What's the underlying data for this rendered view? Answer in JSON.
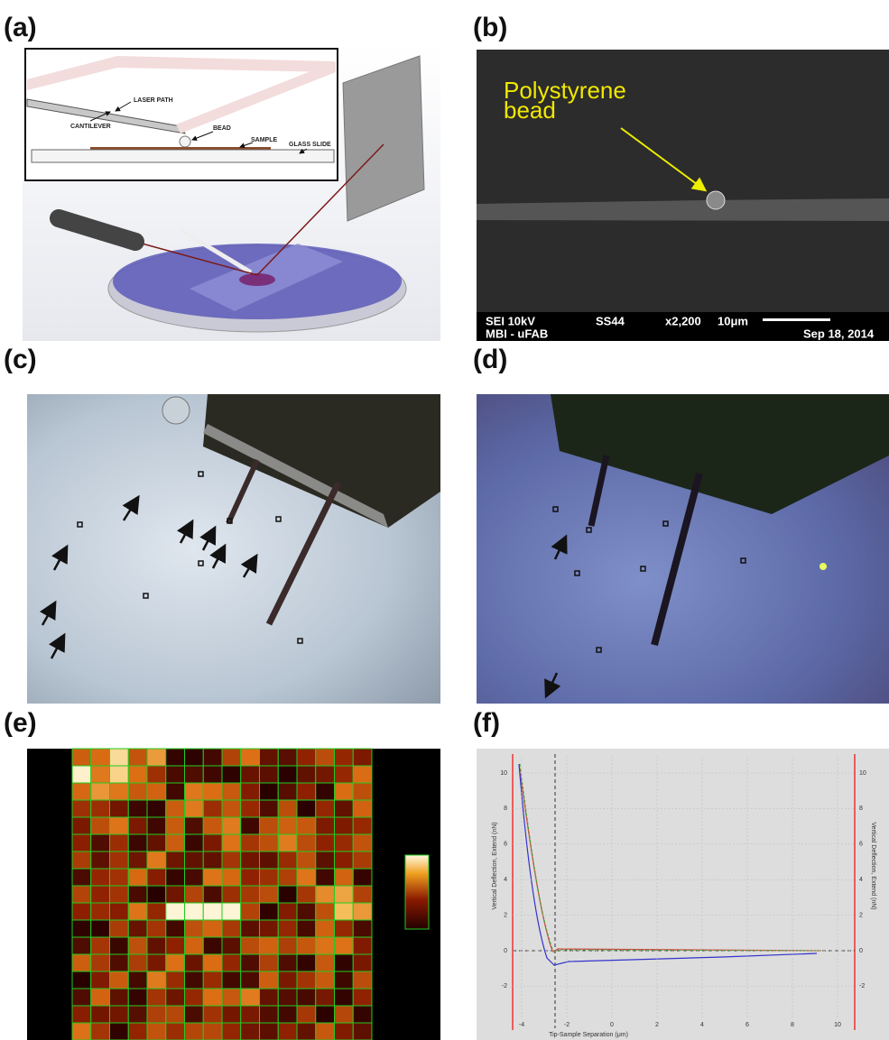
{
  "panels": [
    {
      "label": "(a)",
      "annotations": [
        "LASER PATH",
        "CANTILEVER",
        "BEAD",
        "SAMPLE",
        "GLASS SLIDE"
      ]
    },
    {
      "label": "(b)",
      "annotation_lines": [
        "Polystyrene",
        "bead"
      ],
      "info_bar": [
        "SEI 10kV",
        "MBI - uFAB",
        "SS44",
        "x2,200",
        "10μm",
        "Sep 18, 2014"
      ]
    },
    {
      "label": "(c)"
    },
    {
      "label": "(d)"
    },
    {
      "label": "(e)"
    },
    {
      "label": "(f)",
      "y_axis_label": "Vertical Deflection, Extend (nN)",
      "x_axis_label": "Tip-Sample Separation (μm)",
      "yticks": [
        10,
        8,
        6,
        4,
        2,
        0,
        -2
      ],
      "xticks": [
        -4,
        -2,
        0,
        2,
        4,
        6,
        8,
        10
      ]
    }
  ]
}
